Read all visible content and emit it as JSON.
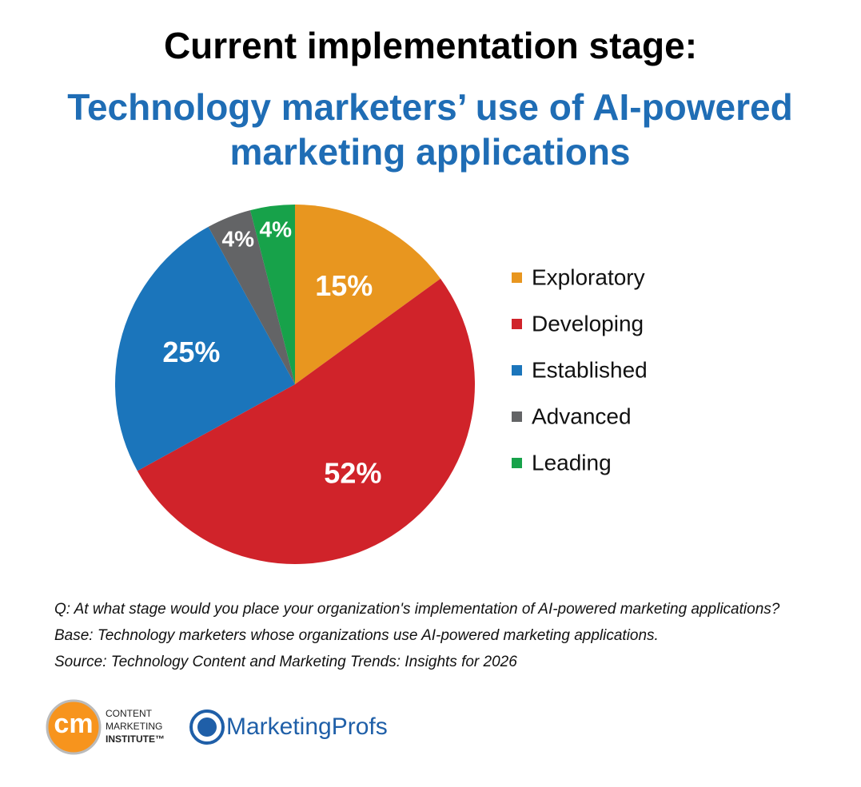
{
  "chart_data": {
    "type": "pie",
    "title": "Current implementation stage:",
    "subtitle": "Technology marketers’ use of AI-powered marketing applications",
    "categories": [
      "Exploratory",
      "Developing",
      "Established",
      "Advanced",
      "Leading"
    ],
    "values": [
      15,
      52,
      25,
      4,
      4
    ],
    "value_labels": [
      "15%",
      "52%",
      "25%",
      "4%",
      "4%"
    ],
    "colors": [
      "#e8961f",
      "#d0232a",
      "#1b75bb",
      "#636466",
      "#17a24a"
    ],
    "legend": "right",
    "notes": [
      "Q: At what stage would you place your organization's implementation of AI-powered marketing applications?",
      "Base: Technology marketers whose organizations use AI-powered marketing applications.",
      "Source: Technology Content and Marketing Trends: Insights for 2026"
    ],
    "logos": {
      "cmi_mark": "cm",
      "cmi_lines": [
        "CONTENT",
        "MARKETING",
        "INSTITUTE™"
      ],
      "mprofs": "MarketingProfs"
    }
  }
}
